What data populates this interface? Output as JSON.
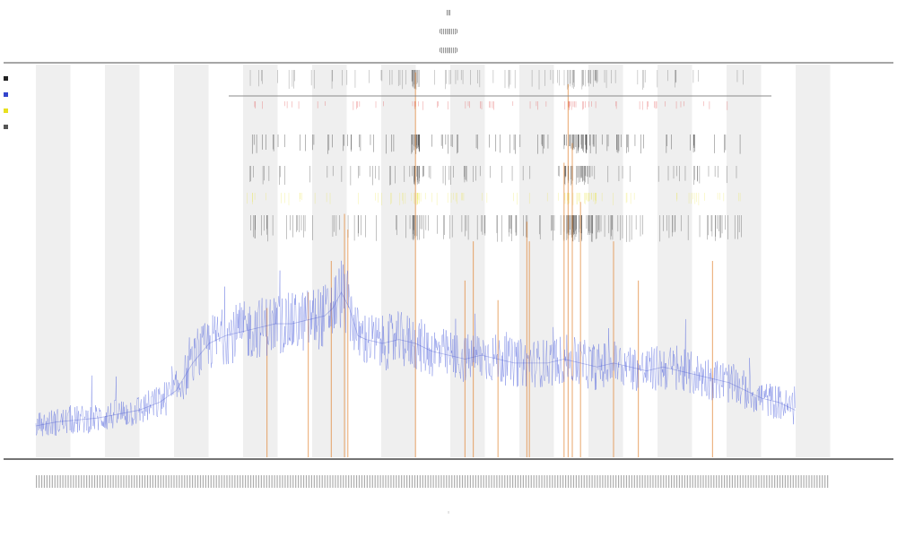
{
  "chart_data": {
    "type": "line",
    "header_lines": [
      "|||",
      "(|||||||||)",
      "(|||||||||)"
    ],
    "xlabel": "|",
    "ylabel": "",
    "legend": {
      "placement": "top-left",
      "entries": [
        {
          "name": "",
          "color": "#222222"
        },
        {
          "name": "",
          "color": "#3344cc"
        },
        {
          "name": "",
          "color": "#e8e020"
        },
        {
          "name": "",
          "color": "#555555"
        }
      ]
    },
    "grid": false,
    "alternating_bands": true,
    "x_range": [
      0,
      1000
    ],
    "y_range": [
      0,
      100
    ],
    "series": [
      {
        "kind": "main-signal",
        "color": "#5566dd",
        "points": [
          [
            0,
            8
          ],
          [
            25,
            9
          ],
          [
            50,
            9.5
          ],
          [
            75,
            10
          ],
          [
            100,
            11
          ],
          [
            125,
            12
          ],
          [
            150,
            14
          ],
          [
            170,
            17
          ],
          [
            190,
            24
          ],
          [
            210,
            29
          ],
          [
            230,
            31
          ],
          [
            250,
            32
          ],
          [
            270,
            33
          ],
          [
            290,
            34
          ],
          [
            310,
            34
          ],
          [
            330,
            35
          ],
          [
            350,
            36
          ],
          [
            360,
            38
          ],
          [
            370,
            42
          ],
          [
            380,
            38
          ],
          [
            390,
            31
          ],
          [
            400,
            30
          ],
          [
            420,
            29
          ],
          [
            440,
            30
          ],
          [
            460,
            29
          ],
          [
            480,
            27
          ],
          [
            500,
            26
          ],
          [
            520,
            25
          ],
          [
            540,
            26
          ],
          [
            560,
            25
          ],
          [
            580,
            24
          ],
          [
            600,
            24
          ],
          [
            620,
            24
          ],
          [
            640,
            25
          ],
          [
            660,
            24
          ],
          [
            680,
            23
          ],
          [
            700,
            24
          ],
          [
            720,
            23
          ],
          [
            740,
            22
          ],
          [
            760,
            23
          ],
          [
            780,
            22
          ],
          [
            800,
            21
          ],
          [
            820,
            20
          ],
          [
            840,
            19
          ],
          [
            860,
            17
          ],
          [
            880,
            15
          ],
          [
            900,
            14
          ],
          [
            920,
            12
          ]
        ]
      }
    ],
    "orange_events": [
      {
        "x": 280,
        "height": 38
      },
      {
        "x": 330,
        "height": 42
      },
      {
        "x": 358,
        "height": 50
      },
      {
        "x": 374,
        "height": 62
      },
      {
        "x": 378,
        "height": 58
      },
      {
        "x": 460,
        "height": 98
      },
      {
        "x": 520,
        "height": 45
      },
      {
        "x": 530,
        "height": 55
      },
      {
        "x": 560,
        "height": 40
      },
      {
        "x": 595,
        "height": 60
      },
      {
        "x": 598,
        "height": 55
      },
      {
        "x": 640,
        "height": 75
      },
      {
        "x": 645,
        "height": 95
      },
      {
        "x": 650,
        "height": 80
      },
      {
        "x": 660,
        "height": 65
      },
      {
        "x": 700,
        "height": 55
      },
      {
        "x": 730,
        "height": 45
      },
      {
        "x": 820,
        "height": 50
      }
    ],
    "event_tracks": [
      {
        "kind": "tick-row-1",
        "color": "#222222"
      },
      {
        "kind": "tick-row-2-red",
        "color": "#e05050"
      },
      {
        "kind": "tick-row-3",
        "color": "#222222"
      },
      {
        "kind": "tick-row-4",
        "color": "#222222"
      },
      {
        "kind": "tick-row-5-yellow",
        "color": "#e8e020"
      },
      {
        "kind": "tick-row-6-dense",
        "color": "#222222"
      }
    ]
  }
}
